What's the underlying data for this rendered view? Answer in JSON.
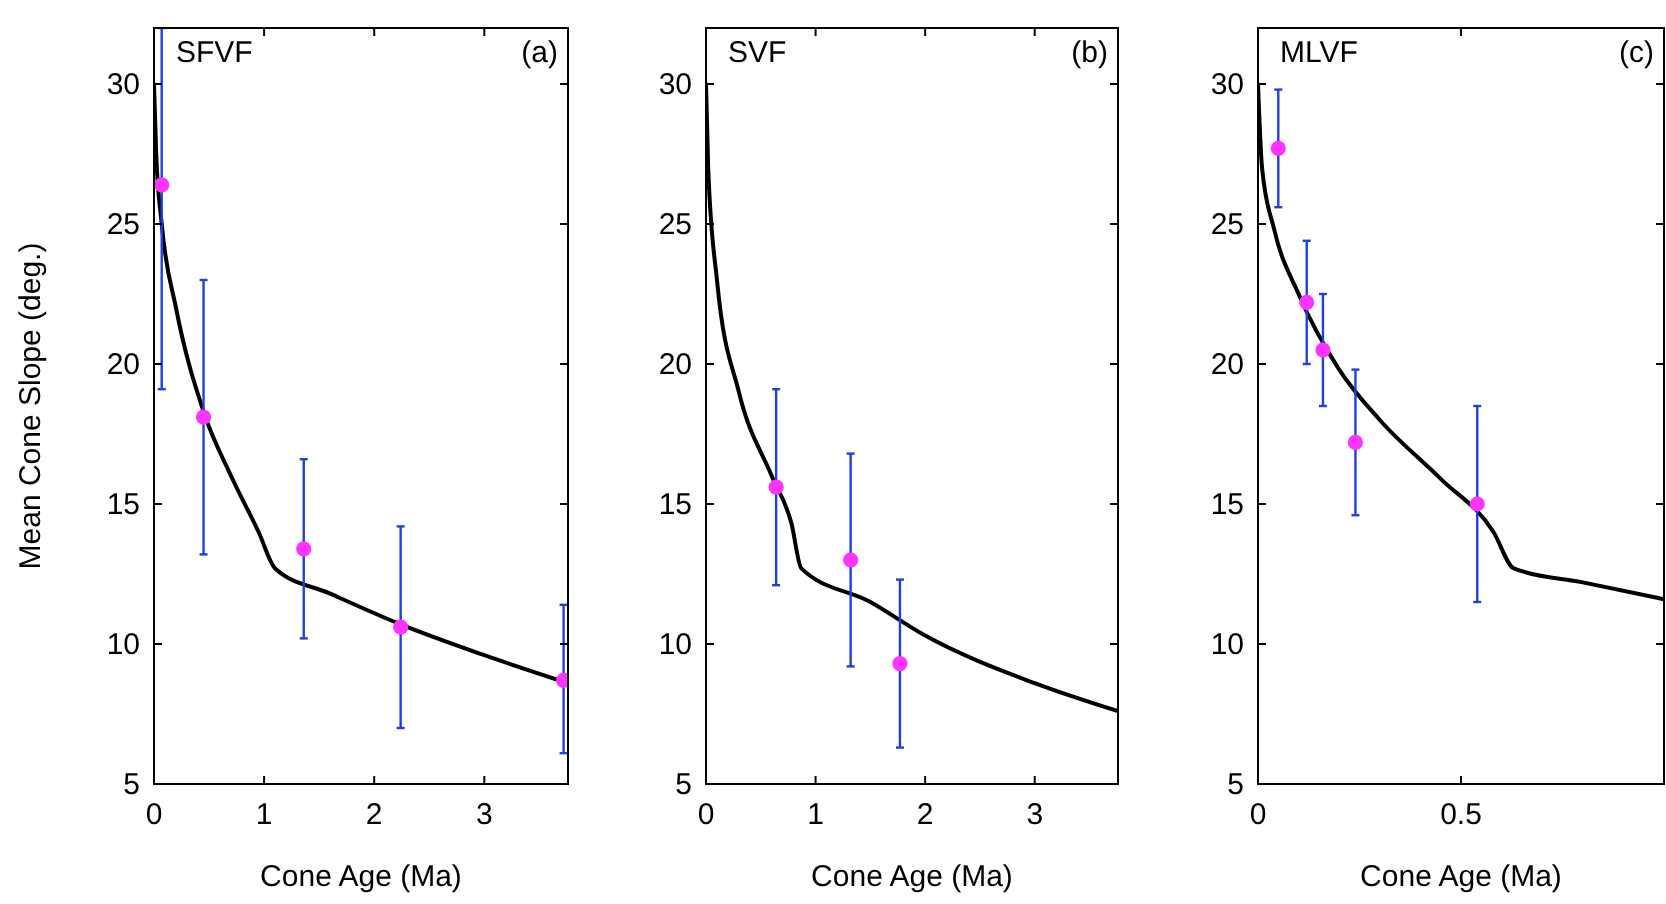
{
  "chart_data": [
    {
      "type": "scatter",
      "xlabel": "Cone Age (Ma)",
      "ylabel": "Mean Cone Slope (deg.)",
      "annotations": [
        "SFVF",
        "(a)"
      ],
      "xlim": [
        0,
        3.76
      ],
      "ylim": [
        5,
        32
      ],
      "xticks": [
        0,
        1,
        2,
        3
      ],
      "yticks": [
        5,
        10,
        15,
        20,
        25,
        30
      ],
      "grid": false,
      "series": [
        {
          "type": "line",
          "color": "#000000",
          "marker": "none",
          "line_style": "solid",
          "x": [
            0,
            0.02,
            0.07,
            0.2,
            0.45,
            0.7,
            0.95,
            1.1,
            1.6,
            2.24,
            3,
            3.76
          ],
          "values": [
            30,
            27.5,
            25,
            22,
            18.3,
            16,
            14,
            12.7,
            11.8,
            10.7,
            9.6,
            8.6
          ]
        },
        {
          "color": "#ff33ff",
          "marker": "circle",
          "x": [
            0.07,
            0.45,
            1.36,
            2.24,
            3.72
          ],
          "values": [
            26.4,
            18.1,
            13.4,
            10.6,
            8.7
          ],
          "errors": [
            [
              19.1,
              32
            ],
            [
              13.2,
              23.0
            ],
            [
              10.2,
              16.6
            ],
            [
              7.0,
              14.2
            ],
            [
              6.1,
              11.4
            ]
          ]
        }
      ]
    },
    {
      "type": "scatter",
      "xlabel": "Cone Age (Ma)",
      "annotations": [
        "SVF",
        "(b)"
      ],
      "xlim": [
        0,
        3.76
      ],
      "ylim": [
        5,
        32
      ],
      "xticks": [
        0,
        1,
        2,
        3
      ],
      "yticks": [
        5,
        10,
        15,
        20,
        25,
        30
      ],
      "grid": false,
      "series": [
        {
          "type": "line",
          "color": "#000000",
          "marker": "none",
          "line_style": "solid",
          "x": [
            0,
            0.02,
            0.1,
            0.3,
            0.6,
            0.78,
            0.87,
            1.5,
            2,
            3,
            3.76
          ],
          "values": [
            30,
            27,
            23,
            19,
            16,
            14.3,
            12.7,
            11.5,
            10.3,
            8.6,
            7.6
          ]
        },
        {
          "color": "#ff33ff",
          "marker": "circle",
          "x": [
            0.64,
            1.32,
            1.77
          ],
          "values": [
            15.6,
            13.0,
            9.3
          ],
          "errors": [
            [
              12.1,
              19.1
            ],
            [
              9.2,
              16.8
            ],
            [
              6.3,
              12.3
            ]
          ]
        }
      ]
    },
    {
      "type": "scatter",
      "xlabel": "Cone Age (Ma)",
      "annotations": [
        "MLVF",
        "(c)"
      ],
      "xlim": [
        0,
        1
      ],
      "ylim": [
        5,
        32
      ],
      "xticks": [
        0,
        0.5
      ],
      "yticks": [
        5,
        10,
        15,
        20,
        25,
        30
      ],
      "grid": false,
      "series": [
        {
          "type": "line",
          "color": "#000000",
          "marker": "none",
          "line_style": "solid",
          "x": [
            0,
            0.01,
            0.04,
            0.1,
            0.2,
            0.3,
            0.45,
            0.58,
            0.63,
            0.8,
            1
          ],
          "values": [
            30,
            27,
            24.8,
            22.5,
            19.8,
            18,
            15.9,
            14,
            12.7,
            12.2,
            11.6
          ]
        },
        {
          "color": "#ff33ff",
          "marker": "circle",
          "x": [
            0.05,
            0.12,
            0.16,
            0.24,
            0.54
          ],
          "values": [
            27.7,
            22.2,
            20.5,
            17.2,
            15.0
          ],
          "errors": [
            [
              25.6,
              29.8
            ],
            [
              20.0,
              24.4
            ],
            [
              18.5,
              22.5
            ],
            [
              14.6,
              19.8
            ],
            [
              11.5,
              18.5
            ]
          ]
        }
      ]
    }
  ]
}
